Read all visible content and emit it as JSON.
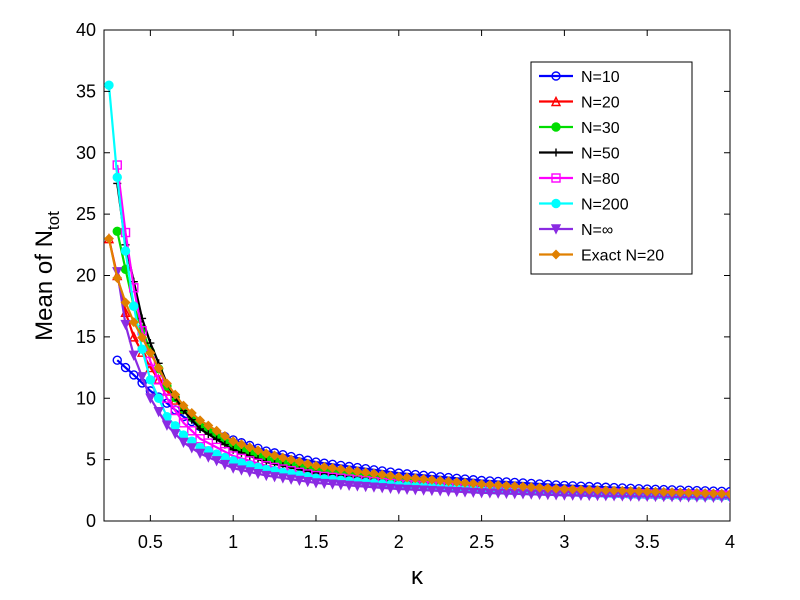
{
  "chart_data": {
    "type": "line",
    "xlabel": "κ",
    "ylabel": {
      "main": "Mean of N",
      "sub": "tot"
    },
    "xlim": [
      0.22,
      4
    ],
    "ylim": [
      0,
      40
    ],
    "xticks": [
      0.5,
      1,
      1.5,
      2,
      2.5,
      3,
      3.5,
      4
    ],
    "xtick_labels": [
      "0.5",
      "1",
      "1.5",
      "2",
      "2.5",
      "3",
      "3.5",
      "4"
    ],
    "yticks": [
      0,
      5,
      10,
      15,
      20,
      25,
      30,
      35,
      40
    ],
    "ytick_labels": [
      "0",
      "5",
      "10",
      "15",
      "20",
      "25",
      "30",
      "35",
      "40"
    ],
    "grid": false,
    "legend_position": "top-right",
    "series": [
      {
        "name": "N=10",
        "color": "#0000ff",
        "marker": "circle",
        "x0": 0.3,
        "y0": 13.1,
        "fill": false,
        "x": [
          0.3,
          0.4,
          0.5,
          0.6,
          0.7,
          0.8,
          1.0,
          1.2,
          1.5,
          2.0,
          2.5,
          3.0,
          3.5,
          4.0
        ],
        "y": [
          13.1,
          11.9,
          10.6,
          9.6,
          8.5,
          7.7,
          6.6,
          5.7,
          4.8,
          3.9,
          3.3,
          2.9,
          2.6,
          2.4
        ]
      },
      {
        "name": "N=20",
        "color": "#ff0000",
        "marker": "triangle-up",
        "fill": false,
        "x": [
          0.25,
          0.3,
          0.35,
          0.4,
          0.5,
          0.6,
          0.7,
          0.8,
          1.0,
          1.2,
          1.5,
          2.0,
          2.5,
          3.0,
          3.5,
          4.0
        ],
        "y": [
          23.0,
          20.0,
          17.0,
          15.0,
          12.5,
          10.6,
          9.1,
          8.0,
          6.4,
          5.4,
          4.4,
          3.5,
          2.9,
          2.5,
          2.3,
          2.1
        ]
      },
      {
        "name": "N=30",
        "color": "#00dd00",
        "marker": "circle",
        "fill": true,
        "x": [
          0.3,
          0.35,
          0.4,
          0.5,
          0.6,
          0.7,
          0.8,
          1.0,
          1.2,
          1.5,
          2.0,
          2.5,
          3.0,
          3.5,
          4.0
        ],
        "y": [
          23.6,
          20.5,
          17.5,
          13.8,
          11.0,
          9.1,
          7.8,
          6.1,
          5.1,
          4.1,
          3.3,
          2.8,
          2.5,
          2.3,
          2.1
        ]
      },
      {
        "name": "N=50",
        "color": "#000000",
        "marker": "plus",
        "fill": false,
        "x": [
          0.3,
          0.35,
          0.4,
          0.45,
          0.5,
          0.6,
          0.7,
          0.8,
          1.0,
          1.2,
          1.5,
          2.0,
          2.5,
          3.0,
          3.5,
          4.0
        ],
        "y": [
          27.5,
          22.5,
          19.5,
          16.5,
          14.5,
          11.2,
          9.0,
          7.5,
          5.8,
          4.8,
          3.9,
          3.1,
          2.7,
          2.4,
          2.2,
          2.1
        ]
      },
      {
        "name": "N=80",
        "color": "#ff00ff",
        "marker": "square",
        "fill": false,
        "x": [
          0.3,
          0.35,
          0.4,
          0.45,
          0.5,
          0.6,
          0.7,
          0.8,
          1.0,
          1.2,
          1.5,
          2.0,
          2.5,
          3.0,
          3.5,
          4.0
        ],
        "y": [
          29.0,
          23.5,
          19.0,
          15.5,
          13.0,
          10.0,
          8.0,
          6.7,
          5.3,
          4.5,
          3.7,
          3.0,
          2.6,
          2.4,
          2.2,
          2.1
        ]
      },
      {
        "name": "N=200",
        "color": "#00ffff",
        "marker": "circle",
        "fill": true,
        "x": [
          0.25,
          0.3,
          0.35,
          0.4,
          0.45,
          0.5,
          0.6,
          0.7,
          0.8,
          1.0,
          1.2,
          1.5,
          2.0,
          2.5,
          3.0,
          3.5,
          4.0
        ],
        "y": [
          35.5,
          28.0,
          22.0,
          17.5,
          14.0,
          11.5,
          8.5,
          7.0,
          6.0,
          4.9,
          4.2,
          3.5,
          2.9,
          2.5,
          2.3,
          2.1,
          2.0
        ]
      },
      {
        "name": "N=∞",
        "color": "#8a2be2",
        "marker": "triangle-down",
        "fill": true,
        "x": [
          0.3,
          0.35,
          0.4,
          0.5,
          0.6,
          0.7,
          0.8,
          1.0,
          1.2,
          1.5,
          2.0,
          2.5,
          3.0,
          3.5,
          4.0
        ],
        "y": [
          20.3,
          16.0,
          13.5,
          10.0,
          7.8,
          6.4,
          5.5,
          4.3,
          3.7,
          3.1,
          2.6,
          2.3,
          2.1,
          2.0,
          1.9
        ]
      },
      {
        "name": "Exact N=20",
        "color": "#e08000",
        "marker": "diamond",
        "fill": true,
        "x": [
          0.25,
          0.3,
          0.35,
          0.4,
          0.5,
          0.6,
          0.7,
          0.8,
          1.0,
          1.2,
          1.5,
          2.0,
          2.5,
          3.0,
          3.5,
          4.0
        ],
        "y": [
          23.0,
          19.8,
          17.8,
          16.2,
          13.7,
          11.2,
          9.4,
          8.2,
          6.5,
          5.5,
          4.5,
          3.6,
          3.0,
          2.6,
          2.4,
          2.2
        ]
      }
    ]
  }
}
